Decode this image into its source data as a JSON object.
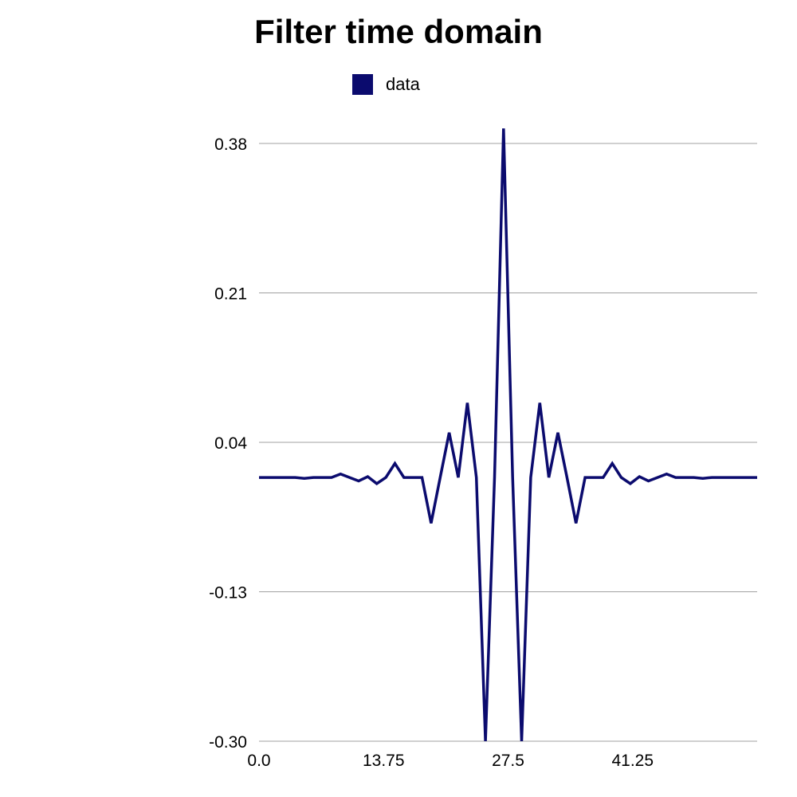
{
  "chart_data": {
    "type": "line",
    "title": "Filter time domain",
    "xlabel": "",
    "ylabel": "",
    "grid": true,
    "legend_position": "top-center",
    "xlim": [
      0,
      55
    ],
    "ylim": [
      -0.3,
      0.38
    ],
    "yticks": [
      "0.38",
      "0.21",
      "0.04",
      "-0.13",
      "-0.30"
    ],
    "ytick_values": [
      0.38,
      0.21,
      0.04,
      -0.13,
      -0.3
    ],
    "xticks": [
      "0.0",
      "13.75",
      "27.5",
      "41.25"
    ],
    "xtick_values": [
      0,
      13.75,
      27.5,
      41.25
    ],
    "series": [
      {
        "name": "data",
        "color": "#0b0b6e",
        "x": [
          0,
          1,
          2,
          3,
          4,
          5,
          6,
          7,
          8,
          9,
          10,
          11,
          12,
          13,
          14,
          15,
          16,
          17,
          18,
          19,
          20,
          21,
          22,
          23,
          24,
          25,
          26,
          27,
          28,
          29,
          30,
          31,
          32,
          33,
          34,
          35,
          36,
          37,
          38,
          39,
          40,
          41,
          42,
          43,
          44,
          45,
          46,
          47,
          48,
          49,
          50,
          51,
          52,
          53,
          54,
          55
        ],
        "values": [
          0.0,
          0.0,
          0.0,
          0.0,
          0.0,
          -0.001,
          0.0,
          0.0,
          0.0,
          0.004,
          0.0,
          -0.004,
          0.001,
          -0.007,
          0.0,
          0.016,
          0.0,
          0.0,
          0.0,
          -0.052,
          0.0,
          0.051,
          0.0,
          0.085,
          0.0,
          -0.3,
          0.0,
          0.397,
          0.0,
          -0.3,
          0.0,
          0.085,
          0.0,
          0.051,
          0.0,
          -0.052,
          0.0,
          0.0,
          0.0,
          0.016,
          0.0,
          -0.007,
          0.001,
          -0.004,
          0.0,
          0.004,
          0.0,
          0.0,
          0.0,
          -0.001,
          0.0,
          0.0,
          0.0,
          0.0,
          0.0,
          0.0
        ]
      }
    ]
  }
}
